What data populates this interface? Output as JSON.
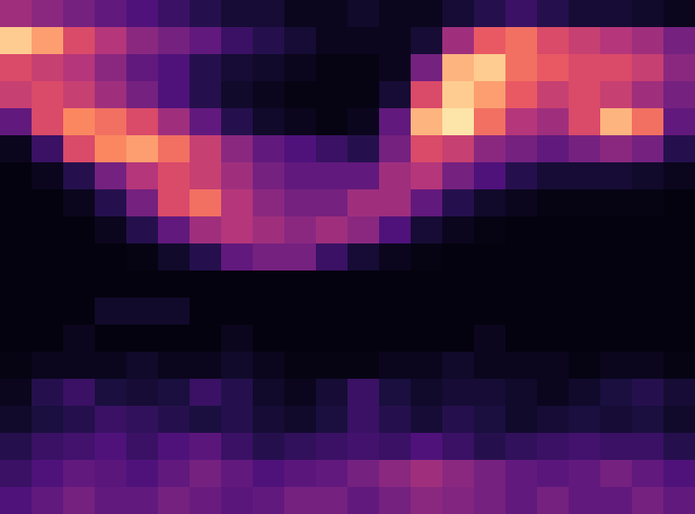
{
  "chart_data": {
    "type": "heatmap",
    "color": "magma",
    "zlim": [
      0,
      1
    ],
    "tick_labels": false,
    "cells": [
      [
        0.45,
        0.4,
        0.35,
        0.3,
        0.25,
        0.2,
        0.15,
        0.1,
        0.1,
        0.05,
        0.05,
        0.08,
        0.05,
        0.05,
        0.1,
        0.15,
        0.2,
        0.15,
        0.1,
        0.1,
        0.08,
        0.05
      ],
      [
        0.9,
        0.8,
        0.6,
        0.5,
        0.4,
        0.35,
        0.3,
        0.2,
        0.15,
        0.1,
        0.05,
        0.05,
        0.05,
        0.1,
        0.45,
        0.65,
        0.7,
        0.6,
        0.55,
        0.5,
        0.45,
        0.35
      ],
      [
        0.6,
        0.55,
        0.5,
        0.4,
        0.3,
        0.25,
        0.15,
        0.1,
        0.08,
        0.05,
        0.03,
        0.03,
        0.05,
        0.35,
        0.85,
        0.9,
        0.7,
        0.65,
        0.6,
        0.6,
        0.55,
        0.4
      ],
      [
        0.55,
        0.6,
        0.55,
        0.45,
        0.35,
        0.25,
        0.15,
        0.08,
        0.05,
        0.03,
        0.03,
        0.03,
        0.1,
        0.6,
        0.9,
        0.8,
        0.65,
        0.55,
        0.6,
        0.55,
        0.45,
        0.35
      ],
      [
        0.3,
        0.6,
        0.75,
        0.7,
        0.6,
        0.45,
        0.3,
        0.15,
        0.08,
        0.05,
        0.03,
        0.05,
        0.3,
        0.85,
        0.95,
        0.7,
        0.5,
        0.45,
        0.6,
        0.85,
        0.7,
        0.3
      ],
      [
        0.05,
        0.2,
        0.6,
        0.75,
        0.8,
        0.7,
        0.55,
        0.4,
        0.3,
        0.25,
        0.2,
        0.15,
        0.35,
        0.6,
        0.55,
        0.4,
        0.35,
        0.3,
        0.35,
        0.4,
        0.35,
        0.15
      ],
      [
        0.02,
        0.05,
        0.15,
        0.35,
        0.5,
        0.6,
        0.55,
        0.45,
        0.35,
        0.3,
        0.3,
        0.3,
        0.45,
        0.5,
        0.35,
        0.25,
        0.15,
        0.1,
        0.1,
        0.1,
        0.08,
        0.05
      ],
      [
        0.02,
        0.02,
        0.05,
        0.15,
        0.35,
        0.6,
        0.7,
        0.5,
        0.4,
        0.35,
        0.35,
        0.45,
        0.45,
        0.3,
        0.15,
        0.08,
        0.05,
        0.03,
        0.03,
        0.03,
        0.03,
        0.02
      ],
      [
        0.02,
        0.02,
        0.02,
        0.05,
        0.15,
        0.3,
        0.45,
        0.5,
        0.45,
        0.4,
        0.45,
        0.4,
        0.25,
        0.1,
        0.05,
        0.03,
        0.02,
        0.02,
        0.02,
        0.02,
        0.02,
        0.02
      ],
      [
        0.02,
        0.02,
        0.02,
        0.02,
        0.03,
        0.08,
        0.15,
        0.3,
        0.35,
        0.35,
        0.2,
        0.1,
        0.05,
        0.03,
        0.02,
        0.02,
        0.02,
        0.02,
        0.02,
        0.02,
        0.02,
        0.02
      ],
      [
        0.02,
        0.02,
        0.02,
        0.02,
        0.02,
        0.02,
        0.02,
        0.02,
        0.02,
        0.02,
        0.02,
        0.02,
        0.02,
        0.02,
        0.02,
        0.02,
        0.02,
        0.02,
        0.02,
        0.02,
        0.02,
        0.02
      ],
      [
        0.02,
        0.02,
        0.02,
        0.08,
        0.08,
        0.08,
        0.02,
        0.02,
        0.02,
        0.02,
        0.02,
        0.02,
        0.02,
        0.02,
        0.02,
        0.02,
        0.02,
        0.02,
        0.02,
        0.02,
        0.02,
        0.02
      ],
      [
        0.02,
        0.02,
        0.05,
        0.02,
        0.02,
        0.02,
        0.02,
        0.05,
        0.02,
        0.02,
        0.02,
        0.02,
        0.02,
        0.02,
        0.02,
        0.05,
        0.02,
        0.02,
        0.02,
        0.02,
        0.02,
        0.02
      ],
      [
        0.03,
        0.05,
        0.05,
        0.05,
        0.08,
        0.05,
        0.05,
        0.08,
        0.05,
        0.03,
        0.03,
        0.03,
        0.05,
        0.05,
        0.08,
        0.05,
        0.05,
        0.05,
        0.03,
        0.05,
        0.05,
        0.03
      ],
      [
        0.05,
        0.15,
        0.2,
        0.12,
        0.1,
        0.12,
        0.2,
        0.15,
        0.08,
        0.05,
        0.1,
        0.2,
        0.12,
        0.08,
        0.1,
        0.1,
        0.08,
        0.05,
        0.08,
        0.12,
        0.15,
        0.1
      ],
      [
        0.08,
        0.12,
        0.15,
        0.2,
        0.18,
        0.15,
        0.12,
        0.15,
        0.1,
        0.08,
        0.12,
        0.2,
        0.15,
        0.1,
        0.15,
        0.12,
        0.08,
        0.1,
        0.12,
        0.1,
        0.12,
        0.08
      ],
      [
        0.15,
        0.2,
        0.22,
        0.25,
        0.2,
        0.25,
        0.28,
        0.2,
        0.15,
        0.18,
        0.2,
        0.22,
        0.2,
        0.25,
        0.2,
        0.15,
        0.18,
        0.2,
        0.22,
        0.2,
        0.2,
        0.15
      ],
      [
        0.2,
        0.25,
        0.3,
        0.28,
        0.25,
        0.3,
        0.35,
        0.3,
        0.25,
        0.28,
        0.3,
        0.35,
        0.4,
        0.45,
        0.4,
        0.35,
        0.3,
        0.28,
        0.3,
        0.35,
        0.3,
        0.25
      ],
      [
        0.25,
        0.3,
        0.35,
        0.3,
        0.3,
        0.35,
        0.32,
        0.28,
        0.3,
        0.35,
        0.35,
        0.3,
        0.35,
        0.4,
        0.38,
        0.35,
        0.3,
        0.35,
        0.3,
        0.3,
        0.35,
        0.3
      ]
    ]
  }
}
